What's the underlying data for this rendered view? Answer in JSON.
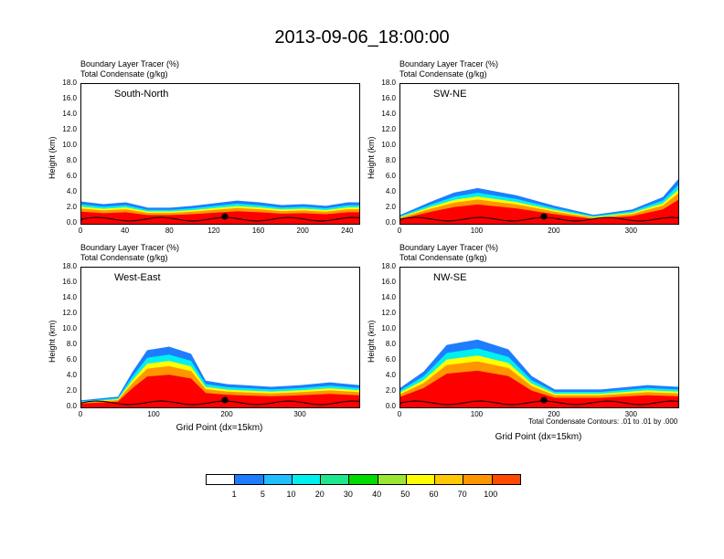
{
  "title": "2013-09-06_18:00:00",
  "colors": {
    "levels": [
      "#ffffff",
      "#1e7dff",
      "#1ebeff",
      "#00f0f0",
      "#1ee68c",
      "#00dc00",
      "#9be632",
      "#ffff00",
      "#ffc800",
      "#ff9600",
      "#ff4b00",
      "#ff0000"
    ]
  },
  "panels": [
    {
      "id": "south-north",
      "label": "South-North",
      "title1": "Boundary Layer Tracer   (%)",
      "title2": "Total Condensate   (g/kg)",
      "ylabel": "Height (km)",
      "xticks": [
        "0",
        "40",
        "80",
        "120",
        "160",
        "200",
        "240"
      ]
    },
    {
      "id": "sw-ne",
      "label": "SW-NE",
      "title1": "Boundary Layer Tracer   (%)",
      "title2": "Total Condensate   (g/kg)",
      "ylabel": "Height (km)",
      "xticks": [
        "0",
        "100",
        "200",
        "300"
      ]
    },
    {
      "id": "west-east",
      "label": "West-East",
      "title1": "Boundary Layer Tracer   (%)",
      "title2": "Total Condensate   (g/kg)",
      "ylabel": "Height (km)",
      "xticks": [
        "0",
        "100",
        "200",
        "300"
      ],
      "xlabel": "Grid Point (dx=15km)"
    },
    {
      "id": "nw-se",
      "label": "NW-SE",
      "title1": "Boundary Layer Tracer   (%)",
      "title2": "Total Condensate   (g/kg)",
      "ylabel": "Height (km)",
      "xticks": [
        "0",
        "100",
        "200",
        "300"
      ],
      "xlabel": "Grid Point (dx=15km)",
      "footnote": "Total Condensate Contours: .01 to .01 by .000"
    }
  ],
  "yticks": [
    "18.0",
    "16.0",
    "14.0",
    "12.0",
    "10.0",
    "8.0",
    "6.0",
    "4.0",
    "2.0",
    "0.0"
  ],
  "colorbar": {
    "labels": [
      "1",
      "5",
      "10",
      "20",
      "30",
      "40",
      "50",
      "60",
      "70",
      "100"
    ]
  },
  "chart_data": {
    "type": "heatmap",
    "title": "2013-09-06_18:00:00",
    "variables": [
      "Boundary Layer Tracer (%)",
      "Total Condensate (g/kg)"
    ],
    "ylabel": "Height (km)",
    "ylim": [
      0,
      18
    ],
    "xlabel": "Grid Point (dx=15km)",
    "colorbar_levels": [
      1,
      5,
      10,
      20,
      30,
      40,
      50,
      60,
      70,
      100
    ],
    "footnote": "Total Condensate Contours: .01 to .01 by .000",
    "series": [
      {
        "name": "South-North",
        "xlim": [
          0,
          250
        ],
        "pbl_top_km": [
          [
            0,
            2.5
          ],
          [
            20,
            2.2
          ],
          [
            40,
            2.4
          ],
          [
            60,
            1.8
          ],
          [
            80,
            1.8
          ],
          [
            100,
            2.0
          ],
          [
            120,
            2.3
          ],
          [
            140,
            2.6
          ],
          [
            160,
            2.4
          ],
          [
            180,
            2.1
          ],
          [
            200,
            2.2
          ],
          [
            220,
            2.0
          ],
          [
            240,
            2.4
          ],
          [
            250,
            2.4
          ]
        ]
      },
      {
        "name": "SW-NE",
        "xlim": [
          0,
          360
        ],
        "pbl_top_km": [
          [
            0,
            1.0
          ],
          [
            40,
            2.5
          ],
          [
            70,
            3.5
          ],
          [
            100,
            4.0
          ],
          [
            150,
            3.2
          ],
          [
            200,
            2.0
          ],
          [
            250,
            1.0
          ],
          [
            300,
            1.6
          ],
          [
            340,
            3.0
          ],
          [
            360,
            5.0
          ]
        ]
      },
      {
        "name": "West-East",
        "xlim": [
          0,
          380
        ],
        "pbl_top_km": [
          [
            0,
            0.8
          ],
          [
            50,
            1.2
          ],
          [
            70,
            4.0
          ],
          [
            90,
            6.4
          ],
          [
            120,
            6.8
          ],
          [
            150,
            6.0
          ],
          [
            170,
            3.0
          ],
          [
            200,
            2.6
          ],
          [
            260,
            2.3
          ],
          [
            300,
            2.5
          ],
          [
            340,
            2.8
          ],
          [
            380,
            2.5
          ]
        ]
      },
      {
        "name": "NW-SE",
        "xlim": [
          0,
          360
        ],
        "pbl_top_km": [
          [
            0,
            2.2
          ],
          [
            30,
            4.0
          ],
          [
            60,
            7.0
          ],
          [
            100,
            7.6
          ],
          [
            140,
            6.5
          ],
          [
            170,
            3.5
          ],
          [
            200,
            2.0
          ],
          [
            260,
            2.0
          ],
          [
            320,
            2.5
          ],
          [
            360,
            2.3
          ]
        ]
      }
    ]
  }
}
